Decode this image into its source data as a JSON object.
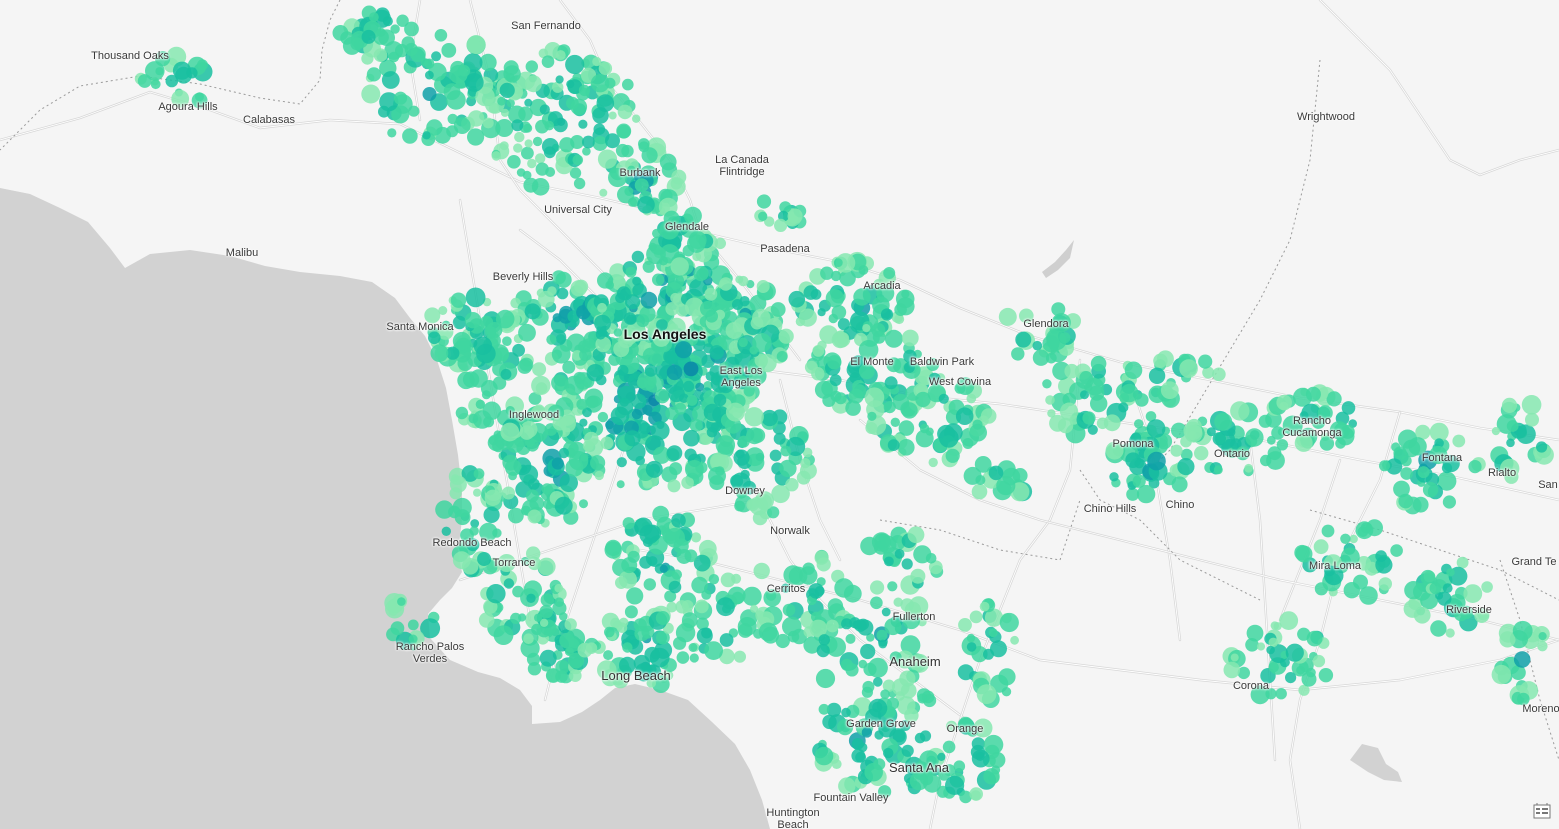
{
  "map": {
    "cities": [
      {
        "name": "San Fernando",
        "tier": "normal"
      },
      {
        "name": "Thousand Oaks",
        "tier": "normal"
      },
      {
        "name": "Agoura Hills",
        "tier": "normal"
      },
      {
        "name": "Calabasas",
        "tier": "normal"
      },
      {
        "name": "La Canada\nFlintridge",
        "tier": "normal"
      },
      {
        "name": "Burbank",
        "tier": "normal"
      },
      {
        "name": "Universal City",
        "tier": "normal"
      },
      {
        "name": "Glendale",
        "tier": "normal"
      },
      {
        "name": "Pasadena",
        "tier": "normal"
      },
      {
        "name": "Malibu",
        "tier": "normal"
      },
      {
        "name": "Beverly Hills",
        "tier": "normal"
      },
      {
        "name": "Arcadia",
        "tier": "normal"
      },
      {
        "name": "Glendora",
        "tier": "normal"
      },
      {
        "name": "Wrightwood",
        "tier": "normal"
      },
      {
        "name": "Santa Monica",
        "tier": "normal"
      },
      {
        "name": "Los Angeles",
        "tier": "major"
      },
      {
        "name": "El Monte",
        "tier": "normal"
      },
      {
        "name": "Baldwin Park",
        "tier": "normal"
      },
      {
        "name": "East Los\nAngeles",
        "tier": "normal"
      },
      {
        "name": "West Covina",
        "tier": "normal"
      },
      {
        "name": "Inglewood",
        "tier": "normal"
      },
      {
        "name": "Pomona",
        "tier": "normal"
      },
      {
        "name": "Rancho\nCucamonga",
        "tier": "normal"
      },
      {
        "name": "Ontario",
        "tier": "normal"
      },
      {
        "name": "Fontana",
        "tier": "normal"
      },
      {
        "name": "Rialto",
        "tier": "normal"
      },
      {
        "name": "San",
        "tier": "normal"
      },
      {
        "name": "Downey",
        "tier": "normal"
      },
      {
        "name": "Chino Hills",
        "tier": "normal"
      },
      {
        "name": "Chino",
        "tier": "normal"
      },
      {
        "name": "Norwalk",
        "tier": "normal"
      },
      {
        "name": "Redondo Beach",
        "tier": "normal"
      },
      {
        "name": "Torrance",
        "tier": "normal"
      },
      {
        "name": "Grand Te",
        "tier": "normal"
      },
      {
        "name": "Mira Loma",
        "tier": "normal"
      },
      {
        "name": "Cerritos",
        "tier": "normal"
      },
      {
        "name": "Riverside",
        "tier": "normal"
      },
      {
        "name": "Fullerton",
        "tier": "normal"
      },
      {
        "name": "Rancho Palos\nVerdes",
        "tier": "normal"
      },
      {
        "name": "Anaheim",
        "tier": "large"
      },
      {
        "name": "Long Beach",
        "tier": "large"
      },
      {
        "name": "Corona",
        "tier": "normal"
      },
      {
        "name": "Moreno",
        "tier": "normal"
      },
      {
        "name": "Garden Grove",
        "tier": "normal"
      },
      {
        "name": "Orange",
        "tier": "normal"
      },
      {
        "name": "Santa Ana",
        "tier": "large"
      },
      {
        "name": "Fountain Valley",
        "tier": "normal"
      },
      {
        "name": "Huntington\nBeach",
        "tier": "normal"
      }
    ],
    "heat_colors": [
      "#86e8b0",
      "#3fd6a0",
      "#19bfa0",
      "#0fa0a8",
      "#0a86a8"
    ],
    "water_color": "#d2d2d2",
    "land_color": "#f5f5f5",
    "road_color": "#d7d7d7",
    "legend_icon": "legend-icon"
  }
}
